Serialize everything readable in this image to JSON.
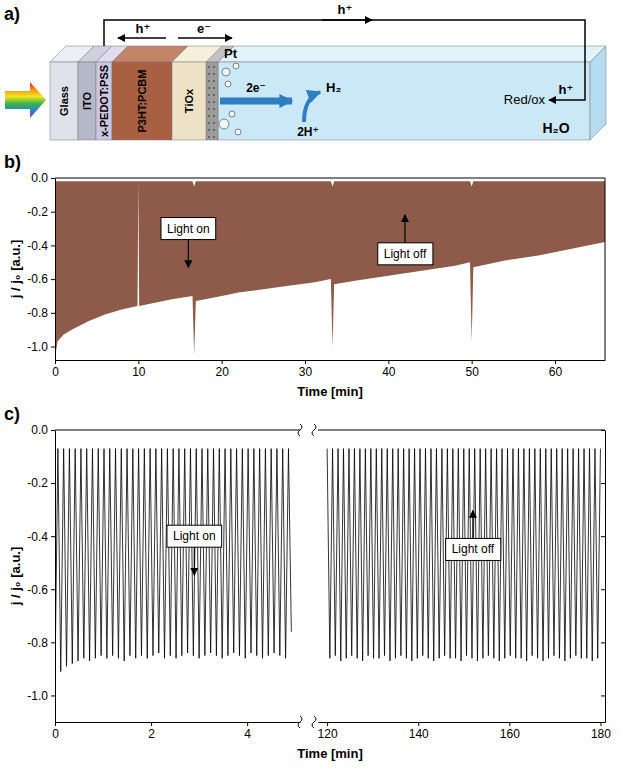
{
  "diagram": {
    "panel": "a)",
    "layers": [
      "Glass",
      "ITO",
      "x-PEDOT:PSS",
      "P3HT:PCBM",
      "TiOx"
    ],
    "electrode": "Pt",
    "electrolyte": "H₂O",
    "hole_circuit": "h⁺",
    "hole_transport": "h⁺",
    "electron_transport": "e⁻",
    "electrode_electrons": "2e⁻",
    "product": "H₂",
    "protons": "2H⁺",
    "redox": "Red/ox",
    "redox_hole": "h⁺"
  },
  "chart_data": [
    {
      "type": "area",
      "panel": "b)",
      "x": [
        0,
        0.3,
        1,
        2,
        4,
        6,
        8,
        9.9,
        10,
        10.1,
        12,
        14,
        16.5,
        16.7,
        16.9,
        18,
        20,
        22,
        25,
        28,
        31,
        33.1,
        33.3,
        33.5,
        36,
        40,
        44,
        48,
        49.8,
        50,
        50.2,
        54,
        58,
        62,
        66
      ],
      "series": [
        {
          "values": [
            -1.07,
            -0.97,
            -0.93,
            -0.9,
            -0.85,
            -0.81,
            -0.78,
            -0.76,
            -0.02,
            -0.76,
            -0.74,
            -0.72,
            -0.7,
            -1.05,
            -0.73,
            -0.72,
            -0.7,
            -0.68,
            -0.66,
            -0.64,
            -0.62,
            -0.6,
            -1.0,
            -0.63,
            -0.61,
            -0.58,
            -0.55,
            -0.52,
            -0.5,
            -0.97,
            -0.53,
            -0.49,
            -0.46,
            -0.42,
            -0.38
          ]
        },
        {
          "values": [
            -0.02,
            -0.02,
            -0.02,
            -0.02,
            -0.02,
            -0.02,
            -0.02,
            -0.02,
            -0.02,
            -0.02,
            -0.02,
            -0.02,
            -0.02,
            -0.05,
            -0.02,
            -0.02,
            -0.02,
            -0.02,
            -0.02,
            -0.02,
            -0.02,
            -0.02,
            -0.05,
            -0.02,
            -0.02,
            -0.02,
            -0.02,
            -0.02,
            -0.02,
            -0.05,
            -0.02,
            -0.02,
            -0.02,
            -0.02,
            -0.02
          ]
        }
      ],
      "color": "#8e5a4a",
      "xlim": [
        0,
        66
      ],
      "xticks": [
        0,
        10,
        20,
        30,
        40,
        50,
        60
      ],
      "ylim": [
        -1.08,
        0
      ],
      "yticks": [
        {
          "value": 0,
          "label": "0.0"
        },
        -0.2,
        -0.4,
        -0.6,
        -0.8,
        {
          "value": -1,
          "label": "-1.0"
        }
      ],
      "xlabel": "Time [min]",
      "ylabel": "j / j₀ [a.u.]",
      "annotations": [
        {
          "text": "Light on",
          "x": 16,
          "y": -0.3,
          "arrow": "down"
        },
        {
          "text": "Light off",
          "x": 42,
          "y": -0.45,
          "arrow": "up"
        }
      ]
    },
    {
      "type": "line",
      "panel": "c)",
      "x": [
        0,
        0.06,
        0.12,
        0.18,
        0.24,
        0.3,
        0.36,
        0.42,
        0.48,
        0.54,
        0.6,
        0.66,
        0.72,
        0.78,
        0.84,
        0.9,
        0.96,
        1.02,
        1.08,
        1.14,
        1.2,
        1.26,
        1.32,
        1.38,
        1.44,
        1.5,
        1.56,
        1.62,
        1.68,
        1.74,
        1.8,
        1.86,
        1.92,
        1.98,
        2.04,
        2.1,
        2.16,
        2.22,
        2.28,
        2.34,
        2.4,
        2.46,
        2.52,
        2.58,
        2.64,
        2.7,
        2.76,
        2.82,
        2.88,
        2.94,
        3,
        3.06,
        3.12,
        3.18,
        3.24,
        3.3,
        3.36,
        3.42,
        3.48,
        3.54,
        3.6,
        3.66,
        3.72,
        3.78,
        3.84,
        3.9,
        3.96,
        4.02,
        4.08,
        4.14,
        4.2,
        4.26,
        4.32,
        4.38,
        4.44,
        4.5,
        4.56,
        4.62,
        4.68,
        4.74,
        4.8,
        4.86,
        4.92
      ],
      "values": [
        -0.93,
        -0.07,
        -0.91,
        -0.07,
        -0.89,
        -0.07,
        -0.88,
        -0.07,
        -0.87,
        -0.07,
        -0.86,
        -0.07,
        -0.87,
        -0.07,
        -0.86,
        -0.07,
        -0.85,
        -0.07,
        -0.86,
        -0.07,
        -0.85,
        -0.07,
        -0.86,
        -0.07,
        -0.87,
        -0.07,
        -0.85,
        -0.07,
        -0.86,
        -0.07,
        -0.85,
        -0.07,
        -0.86,
        -0.07,
        -0.85,
        -0.07,
        -0.84,
        -0.07,
        -0.86,
        -0.07,
        -0.85,
        -0.07,
        -0.86,
        -0.07,
        -0.85,
        -0.07,
        -0.84,
        -0.07,
        -0.85,
        -0.07,
        -0.86,
        -0.07,
        -0.85,
        -0.07,
        -0.84,
        -0.07,
        -0.85,
        -0.07,
        -0.86,
        -0.07,
        -0.85,
        -0.07,
        -0.84,
        -0.07,
        -0.85,
        -0.07,
        -0.86,
        -0.07,
        -0.84,
        -0.07,
        -0.85,
        -0.07,
        -0.86,
        -0.07,
        -0.85,
        -0.07,
        -0.84,
        -0.07,
        -0.85,
        -0.07,
        -0.86,
        -0.07,
        -0.76
      ],
      "color": "#000000",
      "xlim": [
        0,
        5.1
      ],
      "xticks": [
        0,
        2,
        4
      ],
      "ylim": [
        -1.1,
        0
      ],
      "yticks": [
        {
          "value": 0,
          "label": "0.0"
        },
        -0.2,
        -0.4,
        -0.6,
        -0.8,
        {
          "value": -1,
          "label": "-1.0"
        }
      ],
      "ylabel": "j / j₀ [a.u.]",
      "annotations": [
        {
          "text": "Light on",
          "x": 2.9,
          "y": -0.4,
          "arrow": "down"
        }
      ]
    },
    {
      "type": "line",
      "x": [
        120,
        120.6,
        121.2,
        121.8,
        122.4,
        123,
        123.6,
        124.2,
        124.8,
        125.4,
        126,
        126.6,
        127.2,
        127.8,
        128.4,
        129,
        129.6,
        130.2,
        130.8,
        131.4,
        132,
        132.6,
        133.2,
        133.8,
        134.4,
        135,
        135.6,
        136.2,
        136.8,
        137.4,
        138,
        138.6,
        139.2,
        139.8,
        140.4,
        141,
        141.6,
        142.2,
        142.8,
        143.4,
        144,
        144.6,
        145.2,
        145.8,
        146.4,
        147,
        147.6,
        148.2,
        148.8,
        149.4,
        150,
        150.6,
        151.2,
        151.8,
        152.4,
        153,
        153.6,
        154.2,
        154.8,
        155.4,
        156,
        156.6,
        157.2,
        157.8,
        158.4,
        159,
        159.6,
        160.2,
        160.8,
        161.4,
        162,
        162.6,
        163.2,
        163.8,
        164.4,
        165,
        165.6,
        166.2,
        166.8,
        167.4,
        168,
        168.6,
        169.2,
        169.8,
        170.4,
        171,
        171.6,
        172.2,
        172.8,
        173.4,
        174,
        174.6,
        175.2,
        175.8,
        176.4,
        177,
        177.6,
        178.2,
        178.8,
        179.4,
        180
      ],
      "values": [
        -0.07,
        -0.86,
        -0.07,
        -0.85,
        -0.07,
        -0.87,
        -0.07,
        -0.86,
        -0.07,
        -0.85,
        -0.07,
        -0.86,
        -0.07,
        -0.87,
        -0.07,
        -0.85,
        -0.07,
        -0.86,
        -0.07,
        -0.86,
        -0.07,
        -0.85,
        -0.07,
        -0.87,
        -0.07,
        -0.86,
        -0.07,
        -0.85,
        -0.07,
        -0.86,
        -0.07,
        -0.87,
        -0.07,
        -0.86,
        -0.07,
        -0.85,
        -0.07,
        -0.86,
        -0.07,
        -0.87,
        -0.07,
        -0.86,
        -0.07,
        -0.85,
        -0.07,
        -0.86,
        -0.07,
        -0.86,
        -0.07,
        -0.87,
        -0.07,
        -0.85,
        -0.07,
        -0.86,
        -0.07,
        -0.87,
        -0.07,
        -0.86,
        -0.07,
        -0.85,
        -0.07,
        -0.86,
        -0.07,
        -0.87,
        -0.07,
        -0.86,
        -0.07,
        -0.85,
        -0.07,
        -0.86,
        -0.07,
        -0.86,
        -0.07,
        -0.87,
        -0.07,
        -0.85,
        -0.07,
        -0.86,
        -0.07,
        -0.87,
        -0.07,
        -0.86,
        -0.07,
        -0.85,
        -0.07,
        -0.86,
        -0.07,
        -0.87,
        -0.07,
        -0.86,
        -0.07,
        -0.85,
        -0.07,
        -0.86,
        -0.07,
        -0.86,
        -0.07,
        -0.87,
        -0.07,
        -0.86,
        -0.07
      ],
      "color": "#000000",
      "xlim": [
        118,
        181
      ],
      "xticks": [
        120,
        140,
        160,
        180
      ],
      "ylim": [
        -1.1,
        0
      ],
      "yticks": [
        {
          "value": 0,
          "label": "0.0"
        },
        -0.2,
        -0.4,
        -0.6,
        -0.8,
        {
          "value": -1,
          "label": "-1.0"
        }
      ],
      "tick_labels": "x",
      "xlabel": "Time [min]",
      "annotations": [
        {
          "text": "Light off",
          "x": 152,
          "y": -0.45,
          "arrow": "up"
        }
      ]
    }
  ]
}
